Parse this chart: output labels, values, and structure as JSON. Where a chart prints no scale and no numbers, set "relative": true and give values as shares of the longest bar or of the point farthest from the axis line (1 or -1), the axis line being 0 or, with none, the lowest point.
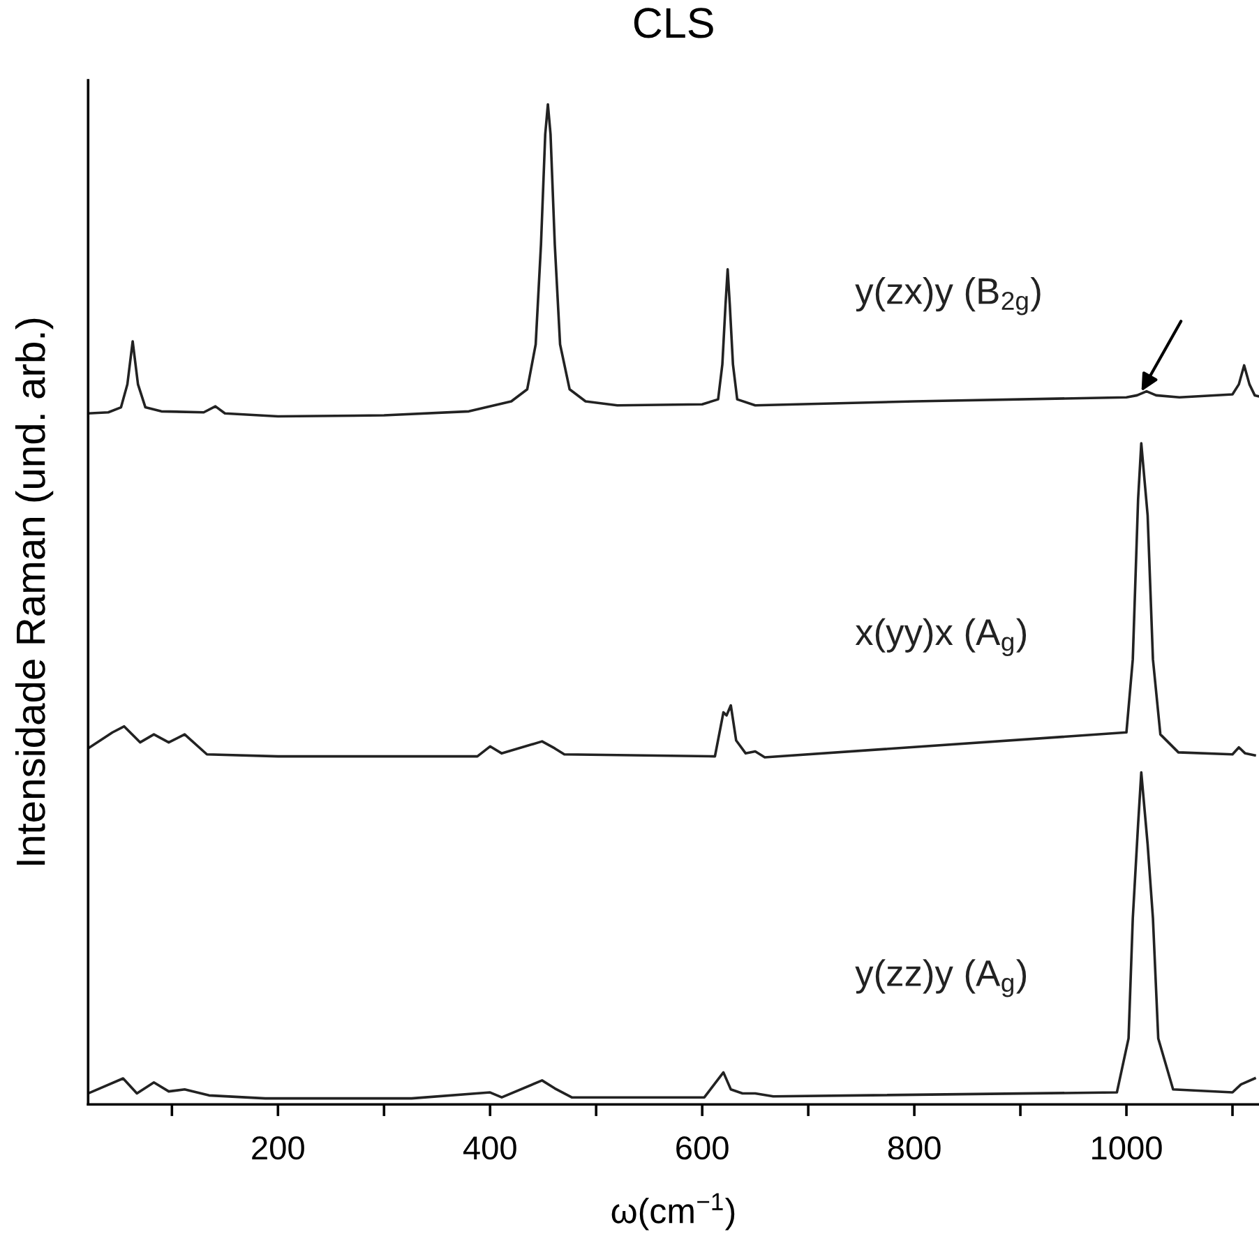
{
  "chart_data": {
    "type": "line",
    "title": "CLS",
    "xlabel": "ω(cm$^{−1}$)",
    "ylabel": "Intensidade Raman (und. arb.)",
    "relative": true,
    "xlim": [
      21,
      1125
    ],
    "xticks": [
      {
        "value": 100,
        "label": null
      },
      200,
      {
        "value": 300,
        "label": null
      },
      400,
      {
        "value": 500,
        "label": null
      },
      600,
      {
        "value": 700,
        "label": null
      },
      800,
      {
        "value": 900,
        "label": null
      },
      1000,
      {
        "value": 1100,
        "label": null
      }
    ],
    "grid": false,
    "legend": false,
    "marker": "none",
    "line_style": "solid",
    "series": [
      {
        "name": "y(zx)y (B$_{2g}$)",
        "color": "#222222",
        "x": [
          21,
          40,
          52,
          58,
          63,
          68,
          75,
          90,
          130,
          141,
          150,
          200,
          300,
          380,
          420,
          435,
          443,
          448,
          452,
          454.5,
          457,
          461,
          466,
          475,
          490,
          520,
          600,
          615,
          619,
          622,
          624,
          626,
          629,
          633,
          650,
          800,
          1000,
          1010,
          1019,
          1028,
          1050,
          1100,
          1106,
          1111,
          1116,
          1121,
          1125
        ],
        "values": [
          0.691,
          0.692,
          0.697,
          0.72,
          0.763,
          0.72,
          0.697,
          0.693,
          0.692,
          0.698,
          0.691,
          0.688,
          0.689,
          0.693,
          0.703,
          0.715,
          0.76,
          0.86,
          0.97,
          1.0,
          0.97,
          0.86,
          0.76,
          0.715,
          0.703,
          0.699,
          0.7,
          0.705,
          0.74,
          0.8,
          0.835,
          0.8,
          0.74,
          0.705,
          0.699,
          0.703,
          0.707,
          0.709,
          0.713,
          0.709,
          0.707,
          0.71,
          0.72,
          0.739,
          0.72,
          0.709,
          0.708
        ]
      },
      {
        "name": "x(yy)x (A$_{g}$)",
        "color": "#222222",
        "x": [
          21,
          44,
          55,
          70,
          83,
          97,
          112,
          133,
          200,
          388,
          400,
          411,
          449,
          461,
          470,
          612,
          620,
          623,
          627,
          632,
          641,
          650,
          659,
          1000,
          1006,
          1011,
          1014,
          1020,
          1025,
          1032,
          1049,
          1100,
          1106,
          1112,
          1121
        ],
        "values": [
          0.356,
          0.372,
          0.378,
          0.362,
          0.37,
          0.362,
          0.37,
          0.35,
          0.348,
          0.348,
          0.358,
          0.351,
          0.363,
          0.356,
          0.35,
          0.348,
          0.392,
          0.389,
          0.399,
          0.364,
          0.351,
          0.353,
          0.347,
          0.372,
          0.445,
          0.605,
          0.661,
          0.589,
          0.445,
          0.37,
          0.352,
          0.35,
          0.357,
          0.351,
          0.349
        ]
      },
      {
        "name": "y(zz)y (A$_{g}$)",
        "color": "#222222",
        "x": [
          21,
          54,
          67,
          83,
          97,
          112,
          135,
          188,
          326,
          400,
          411,
          449,
          461,
          477,
          602,
          620,
          627,
          638,
          650,
          667,
          991,
          1002,
          1006,
          1011,
          1014,
          1020,
          1025,
          1030,
          1044,
          1100,
          1108,
          1121
        ],
        "values": [
          0.011,
          0.026,
          0.011,
          0.022,
          0.013,
          0.015,
          0.009,
          0.006,
          0.006,
          0.012,
          0.007,
          0.024,
          0.016,
          0.007,
          0.007,
          0.032,
          0.015,
          0.011,
          0.011,
          0.008,
          0.012,
          0.066,
          0.186,
          0.28,
          0.332,
          0.26,
          0.186,
          0.066,
          0.015,
          0.012,
          0.02,
          0.026
        ]
      }
    ]
  }
}
